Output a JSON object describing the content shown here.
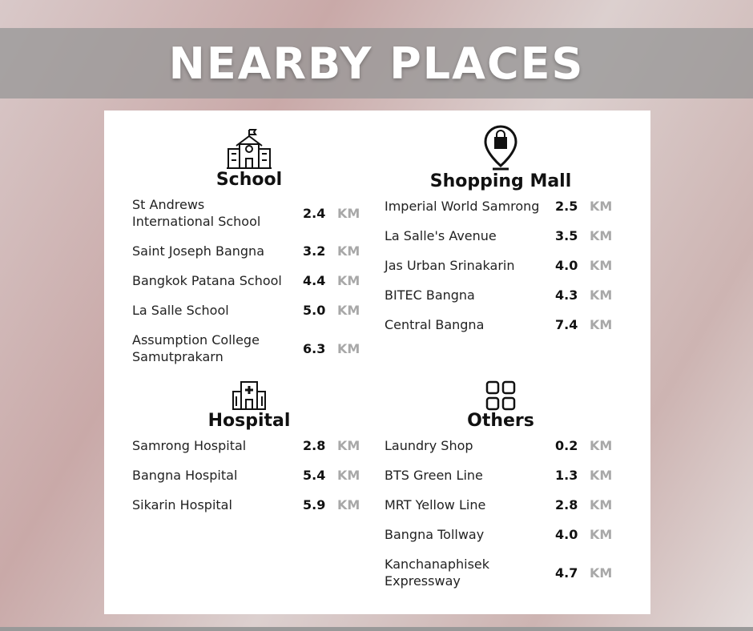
{
  "title": "NEARBY PLACES",
  "unit": "KM",
  "sections": [
    {
      "name": "School",
      "items": [
        {
          "name": "St Andrews\nInternational School",
          "distance": "2.4"
        },
        {
          "name": "Saint Joseph Bangna",
          "distance": "3.2"
        },
        {
          "name": "Bangkok Patana School",
          "distance": "4.4"
        },
        {
          "name": "La Salle School",
          "distance": "5.0"
        },
        {
          "name": "Assumption College\nSamutprakarn",
          "distance": "6.3"
        }
      ]
    },
    {
      "name": "Shopping Mall",
      "items": [
        {
          "name": "Imperial World Samrong",
          "distance": "2.5"
        },
        {
          "name": "La Salle's Avenue",
          "distance": "3.5"
        },
        {
          "name": "Jas Urban Srinakarin",
          "distance": "4.0"
        },
        {
          "name": "BITEC Bangna",
          "distance": "4.3"
        },
        {
          "name": "Central Bangna",
          "distance": "7.4"
        }
      ]
    },
    {
      "name": "Hospital",
      "items": [
        {
          "name": "Samrong Hospital",
          "distance": "2.8"
        },
        {
          "name": "Bangna Hospital",
          "distance": "5.4"
        },
        {
          "name": "Sikarin Hospital",
          "distance": "5.9"
        }
      ]
    },
    {
      "name": "Others",
      "items": [
        {
          "name": "Laundry Shop",
          "distance": "0.2"
        },
        {
          "name": "BTS Green Line",
          "distance": "1.3"
        },
        {
          "name": "MRT Yellow Line",
          "distance": "2.8"
        },
        {
          "name": "Bangna Tollway",
          "distance": "4.0"
        },
        {
          "name": "Kanchanaphisek\nExpressway",
          "distance": "4.7"
        }
      ]
    }
  ]
}
